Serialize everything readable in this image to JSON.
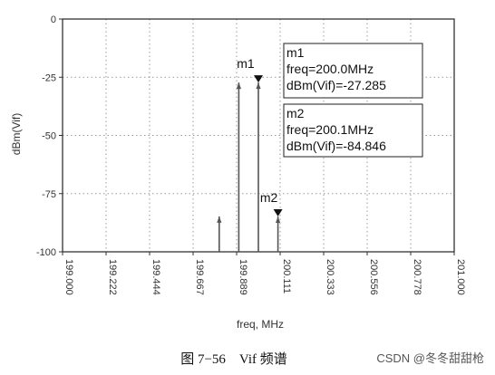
{
  "chart_data": {
    "type": "line",
    "xlabel": "freq, MHz",
    "ylabel": "dBm(Vif)",
    "xlim": [
      199.0,
      201.0
    ],
    "ylim": [
      -100,
      0
    ],
    "x_ticks": [
      "199.000",
      "199.222",
      "199.444",
      "199.667",
      "199.889",
      "200.111",
      "200.333",
      "200.556",
      "200.778",
      "201.000"
    ],
    "y_ticks": [
      "0",
      "-25",
      "-50",
      "-75",
      "-100"
    ],
    "spectral_lines": [
      {
        "x": 199.8,
        "y": -84.8
      },
      {
        "x": 199.9,
        "y": -27.3
      },
      {
        "x": 200.0,
        "y": -27.285
      },
      {
        "x": 200.1,
        "y": -84.846
      }
    ],
    "markers": [
      {
        "label": "m1",
        "x": 200.0,
        "y": -27.285,
        "lines": [
          "m1",
          "freq=200.0MHz",
          "dBm(Vif)=-27.285"
        ]
      },
      {
        "label": "m2",
        "x": 200.1,
        "y": -84.846,
        "lines": [
          "m2",
          "freq=200.1MHz",
          "dBm(Vif)=-84.846"
        ]
      }
    ]
  },
  "caption": "图 7−56　Vif 频谱",
  "watermark": "CSDN @冬冬甜甜枪"
}
